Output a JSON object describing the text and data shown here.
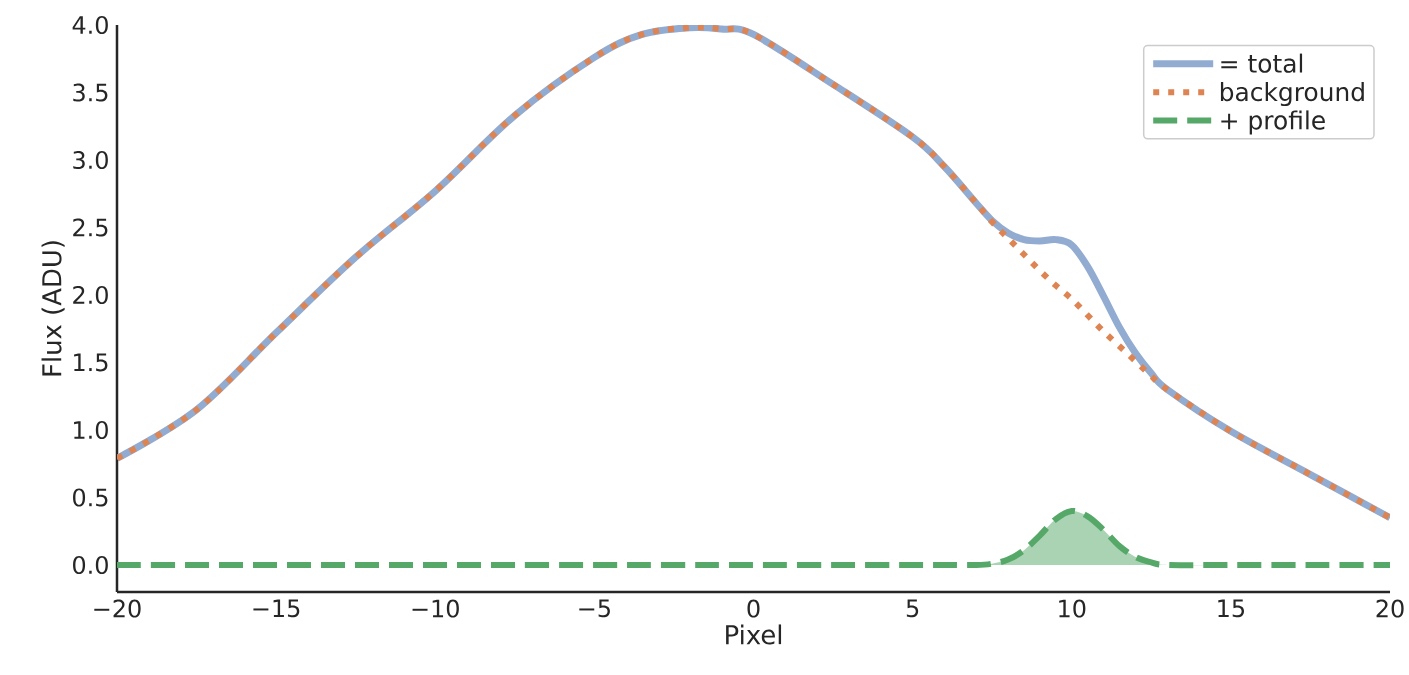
{
  "chart_data": {
    "type": "line",
    "xlabel": "Pixel",
    "ylabel": "Flux (ADU)",
    "x": [
      -20,
      -17.5,
      -15,
      -12.5,
      -10,
      -7.5,
      -5,
      -3.5,
      -2,
      -1,
      0,
      2.5,
      5,
      6,
      7,
      7.5,
      8,
      8.5,
      9,
      9.5,
      10,
      10.5,
      11,
      11.5,
      12,
      12.5,
      13,
      15,
      17.5,
      20
    ],
    "series": [
      {
        "name": "= total",
        "color": "#92abd0",
        "line_style": "solid",
        "values": [
          0.79,
          1.15,
          1.72,
          2.28,
          2.77,
          3.33,
          3.76,
          3.93,
          3.98,
          3.97,
          3.93,
          3.56,
          3.17,
          2.95,
          2.68,
          2.55,
          2.46,
          2.41,
          2.4,
          2.41,
          2.37,
          2.21,
          1.99,
          1.76,
          1.57,
          1.42,
          1.3,
          0.99,
          0.67,
          0.35
        ]
      },
      {
        "name": "background",
        "color": "#dd8452",
        "line_style": "dotted",
        "values": [
          0.79,
          1.15,
          1.72,
          2.28,
          2.77,
          3.33,
          3.76,
          3.93,
          3.98,
          3.97,
          3.93,
          3.56,
          3.17,
          2.95,
          2.68,
          2.54,
          2.42,
          2.3,
          2.18,
          2.07,
          1.97,
          1.85,
          1.73,
          1.62,
          1.51,
          1.4,
          1.3,
          0.99,
          0.67,
          0.35
        ]
      },
      {
        "name": "+ profile",
        "color": "#55a868",
        "line_style": "dashed",
        "type": "area",
        "values": [
          0,
          0,
          0,
          0,
          0,
          0,
          0,
          0,
          0,
          0,
          0,
          0,
          0,
          0,
          0,
          0.01,
          0.04,
          0.11,
          0.22,
          0.34,
          0.4,
          0.36,
          0.26,
          0.14,
          0.06,
          0.02,
          0,
          0,
          0,
          0
        ]
      }
    ],
    "xlim": [
      -20,
      20
    ],
    "ylim": [
      -0.2,
      4.0
    ],
    "xticks": [
      {
        "value": -20,
        "label": "−20"
      },
      {
        "value": -15,
        "label": "−15"
      },
      {
        "value": -10,
        "label": "−10"
      },
      {
        "value": -5,
        "label": "−5"
      },
      0,
      5,
      10,
      15,
      20
    ],
    "yticks": [
      {
        "value": 0,
        "label": "0.0"
      },
      {
        "value": 0.5,
        "label": "0.5"
      },
      {
        "value": 1,
        "label": "1.0"
      },
      {
        "value": 1.5,
        "label": "1.5"
      },
      {
        "value": 2,
        "label": "2.0"
      },
      {
        "value": 2.5,
        "label": "2.5"
      },
      {
        "value": 3,
        "label": "3.0"
      },
      {
        "value": 3.5,
        "label": "3.5"
      },
      {
        "value": 4,
        "label": "4.0"
      }
    ],
    "legend": "top right",
    "grid": false
  }
}
